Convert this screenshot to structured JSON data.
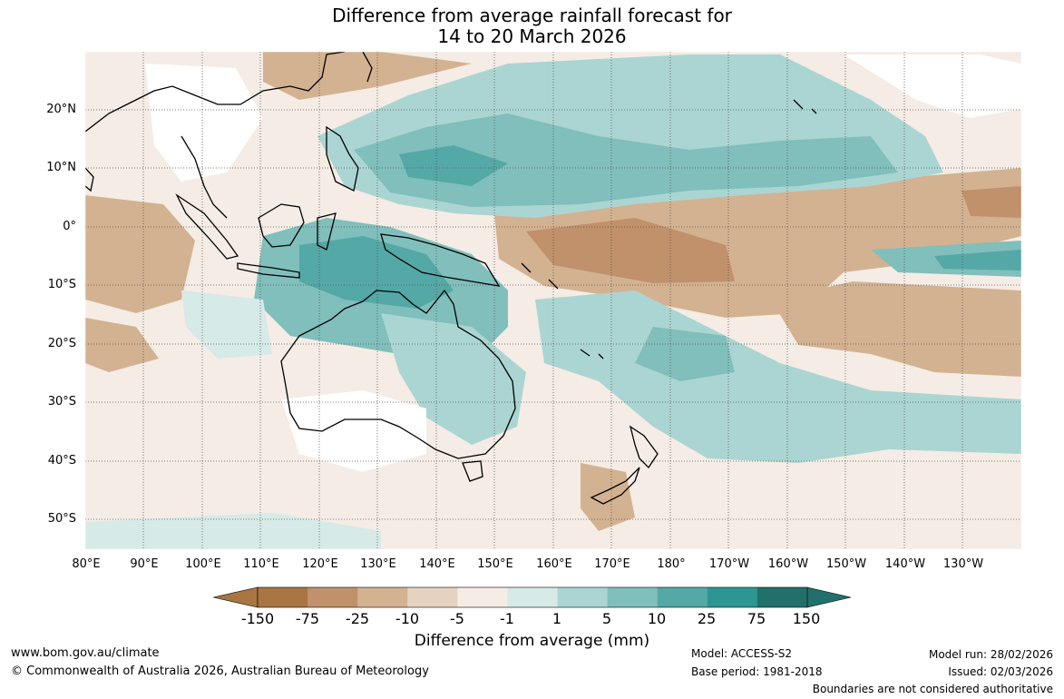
{
  "title": {
    "line1": "Difference from average rainfall forecast for",
    "line2": "14 to 20 March 2026"
  },
  "latitude_labels": [
    "20°N",
    "10°N",
    "0°",
    "10°S",
    "20°S",
    "30°S",
    "40°S",
    "50°S"
  ],
  "longitude_labels": [
    "80°E",
    "90°E",
    "100°E",
    "110°E",
    "120°E",
    "130°E",
    "140°E",
    "150°E",
    "160°E",
    "170°E",
    "180°",
    "170°W",
    "160°W",
    "150°W",
    "140°W",
    "130°W"
  ],
  "colorbar": {
    "labels": [
      "-150",
      "-75",
      "-25",
      "-10",
      "-5",
      "-1",
      "1",
      "5",
      "10",
      "25",
      "75",
      "150"
    ],
    "colors": [
      "#a97542",
      "#c0916a",
      "#d3b291",
      "#e5d2bf",
      "#f4ece5",
      "#ffffff",
      "#d6eae8",
      "#abd5d2",
      "#80bfbb",
      "#54a8a6",
      "#2e9692",
      "#21706c"
    ],
    "title": "Difference from average (mm)"
  },
  "footer": {
    "url": "www.bom.gov.au/climate",
    "copyright": "© Commonwealth of Australia 2026, Australian Bureau of Meteorology",
    "model": "Model: ACCESS-S2",
    "base_period": "Base period: 1981-2018",
    "model_run": "Model run: 28/02/2026",
    "issued": "Issued: 02/03/2026",
    "disclaimer": "Boundaries are not considered authoritative"
  }
}
